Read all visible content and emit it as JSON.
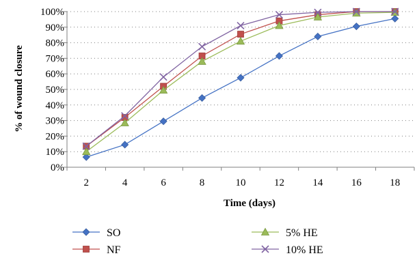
{
  "chart_data": {
    "type": "line",
    "xlabel": "Time (days)",
    "ylabel": "% of wound closure",
    "x": [
      2,
      4,
      6,
      8,
      10,
      12,
      14,
      16,
      18
    ],
    "x_tick_labels": [
      "2",
      "4",
      "6",
      "8",
      "10",
      "12",
      "14",
      "16",
      "18"
    ],
    "y_tick_labels": [
      "0%",
      "10%",
      "20%",
      "30%",
      "40%",
      "50%",
      "60%",
      "70%",
      "80%",
      "90%",
      "100%"
    ],
    "ylim": [
      0,
      100
    ],
    "grid": "horizontal dotted",
    "legend_position": "bottom",
    "series": [
      {
        "name": "SO",
        "color": "#4472C4",
        "marker": "diamond",
        "values": [
          6.5,
          14.5,
          29.5,
          44.5,
          57.5,
          71.5,
          84,
          90.5,
          95.5
        ]
      },
      {
        "name": "NF",
        "color": "#C0504D",
        "marker": "square",
        "values": [
          13.5,
          32,
          52,
          71.5,
          85.5,
          94,
          98,
          100,
          100
        ]
      },
      {
        "name": "5% HE",
        "color": "#9BBB59",
        "marker": "triangle",
        "values": [
          10,
          28.5,
          49.5,
          68,
          81,
          91,
          96.5,
          99,
          99.5
        ]
      },
      {
        "name": "10% HE",
        "color": "#8064A2",
        "marker": "x",
        "values": [
          13.5,
          33,
          58,
          77.5,
          91,
          98,
          99.5,
          100,
          100
        ]
      }
    ]
  }
}
